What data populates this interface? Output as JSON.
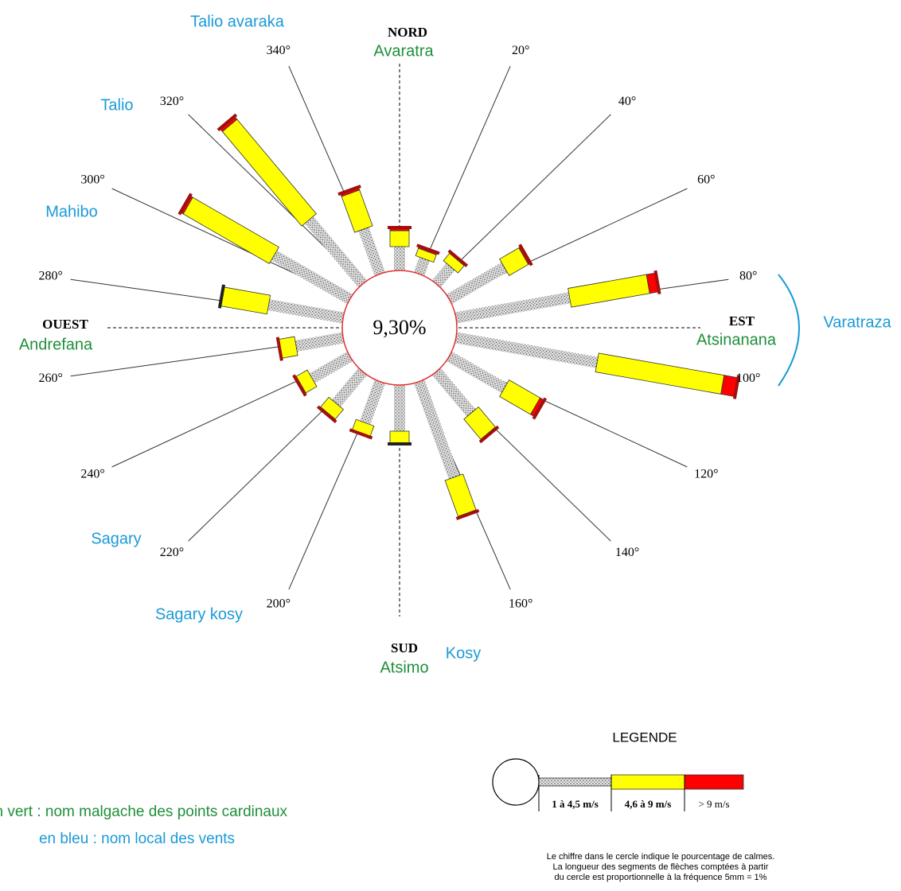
{
  "chart_data": {
    "type": "wind_rose",
    "categories": [
      null,
      "20°",
      "40°",
      "60°",
      "80°",
      "100°",
      "120°",
      "140°",
      "160°",
      null,
      "200°",
      "220°",
      "240°",
      "260°",
      "280°",
      "300°",
      "320°",
      "340°"
    ],
    "series": [
      {
        "name": "1 à 4,5 m/s",
        "color": "#d8d8d8",
        "values": [
          3.0,
          2.0,
          2.8,
          8.0,
          14.5,
          18.0,
          8.0,
          6.8,
          12.8,
          5.8,
          5.5,
          5.2,
          5.5,
          6.0,
          9.5,
          11.0,
          10.5,
          6.0
        ]
      },
      {
        "name": "4,6 à 9 m/s",
        "color": "#ffff00",
        "values": [
          2.0,
          1.0,
          1.2,
          2.8,
          10.0,
          16.0,
          4.5,
          3.3,
          4.8,
          1.6,
          1.4,
          1.6,
          1.6,
          2.0,
          6.0,
          12.5,
          15.5,
          4.8
        ]
      },
      {
        "name": "> 9 m/s",
        "color": "#ff0000",
        "values": [
          0.4,
          0.3,
          0.2,
          0.3,
          1.2,
          1.8,
          0.6,
          0.2,
          0.2,
          0,
          0.1,
          0.2,
          0.2,
          0.1,
          0,
          0.4,
          0.5,
          0.4
        ]
      }
    ],
    "calm_label": "9,30%",
    "cardinals": {
      "north": "NORD",
      "east": "EST",
      "south": "SUD",
      "west": "OUEST"
    },
    "malagasy_names": {
      "north": "Avaratra",
      "east": "Atsinanana",
      "south": "Atsimo",
      "west": "Andrefana"
    },
    "wind_names": [
      "Talio avaraka",
      "Talio",
      "Mahibo",
      "Varatraza",
      "Sagary",
      "Sagary kosy",
      "Kosy"
    ],
    "legend_title": "LEGENDE",
    "notes": [
      "en vert : nom malgache des points cardinaux",
      "en bleu : nom local des vents"
    ],
    "legend_notes": [
      "Le chiffre dans le cercle indique le pourcentage de calmes.",
      "La longueur des segments de flèches comptées à partir",
      "du cercle est proportionnelle à la fréquence  5mm = 1%"
    ]
  }
}
